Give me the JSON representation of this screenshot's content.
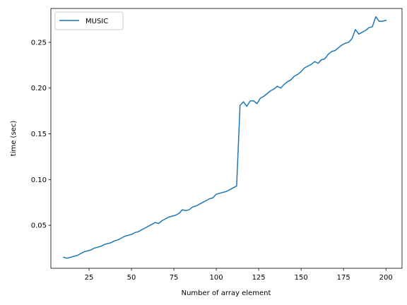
{
  "chart_data": {
    "type": "line",
    "title": "",
    "xlabel": "Number of array element",
    "ylabel": "time (sec)",
    "xlim": [
      2.5,
      209.5
    ],
    "ylim": [
      0.003,
      0.287
    ],
    "xticks": [
      25,
      50,
      75,
      100,
      125,
      150,
      175,
      200
    ],
    "yticks": [
      0.05,
      0.1,
      0.15,
      0.2,
      0.25
    ],
    "xtick_labels": [
      "25",
      "50",
      "75",
      "100",
      "125",
      "150",
      "175",
      "200"
    ],
    "ytick_labels": [
      "0.05",
      "0.10",
      "0.15",
      "0.20",
      "0.25"
    ],
    "grid": false,
    "legend_position": "top-left",
    "series": [
      {
        "name": "MUSIC",
        "color": "#1f77b4",
        "x": [
          10,
          12,
          14,
          16,
          18,
          20,
          22,
          24,
          26,
          28,
          30,
          32,
          34,
          36,
          38,
          40,
          42,
          44,
          46,
          48,
          50,
          52,
          54,
          56,
          58,
          60,
          62,
          64,
          66,
          68,
          70,
          72,
          74,
          76,
          78,
          80,
          82,
          84,
          86,
          88,
          90,
          92,
          94,
          96,
          98,
          100,
          102,
          104,
          106,
          108,
          110,
          112,
          114,
          116,
          118,
          120,
          122,
          124,
          126,
          128,
          130,
          132,
          134,
          136,
          138,
          140,
          142,
          144,
          146,
          148,
          150,
          152,
          154,
          156,
          158,
          160,
          162,
          164,
          166,
          168,
          170,
          172,
          174,
          176,
          178,
          180,
          182,
          184,
          186,
          188,
          190,
          192,
          194,
          196,
          198,
          200
        ],
        "y": [
          0.015,
          0.014,
          0.015,
          0.016,
          0.017,
          0.019,
          0.021,
          0.022,
          0.023,
          0.025,
          0.026,
          0.027,
          0.029,
          0.03,
          0.031,
          0.033,
          0.034,
          0.036,
          0.038,
          0.039,
          0.04,
          0.042,
          0.043,
          0.045,
          0.047,
          0.049,
          0.051,
          0.053,
          0.052,
          0.055,
          0.057,
          0.059,
          0.06,
          0.061,
          0.063,
          0.067,
          0.066,
          0.067,
          0.07,
          0.071,
          0.073,
          0.075,
          0.077,
          0.079,
          0.08,
          0.084,
          0.085,
          0.086,
          0.087,
          0.089,
          0.091,
          0.093,
          0.181,
          0.185,
          0.18,
          0.186,
          0.186,
          0.183,
          0.189,
          0.191,
          0.194,
          0.197,
          0.199,
          0.202,
          0.2,
          0.204,
          0.207,
          0.209,
          0.213,
          0.215,
          0.218,
          0.222,
          0.224,
          0.226,
          0.229,
          0.227,
          0.231,
          0.232,
          0.237,
          0.24,
          0.241,
          0.244,
          0.247,
          0.249,
          0.25,
          0.254,
          0.264,
          0.259,
          0.261,
          0.263,
          0.266,
          0.267,
          0.278,
          0.273,
          0.273,
          0.274
        ]
      }
    ]
  }
}
